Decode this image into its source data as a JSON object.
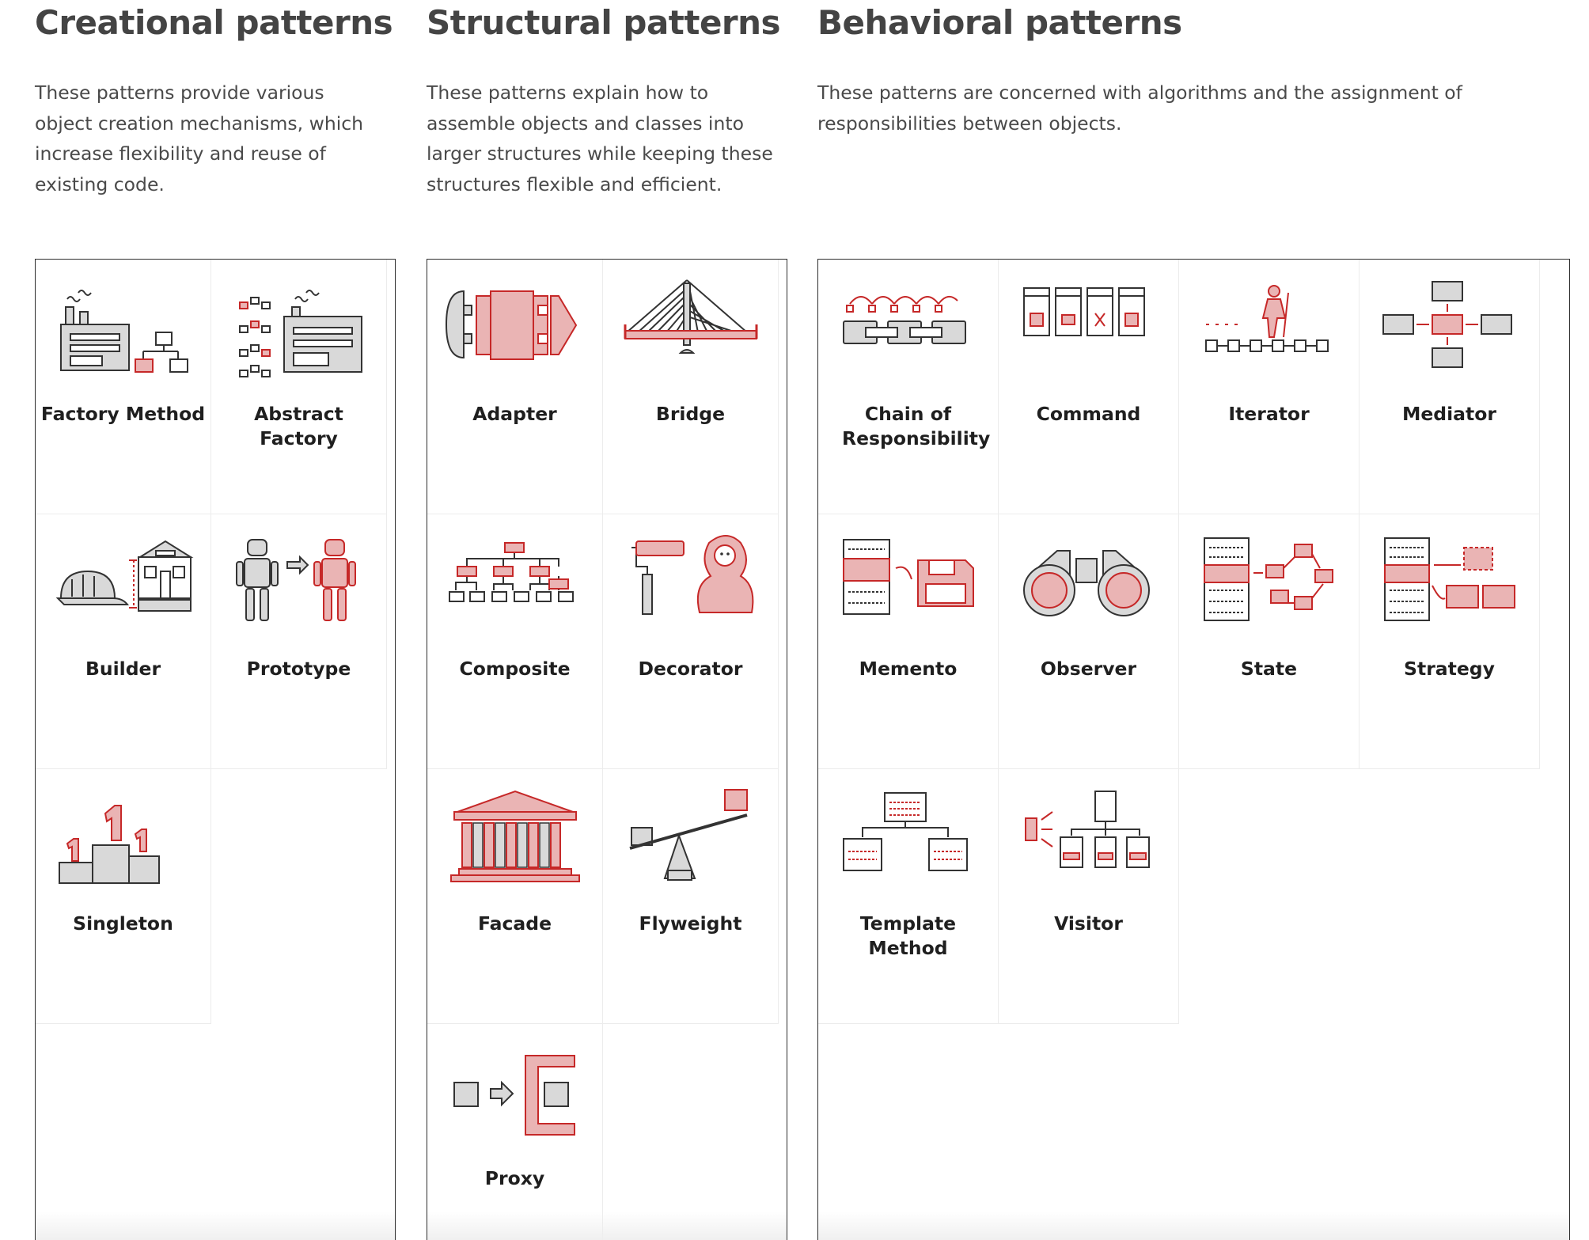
{
  "creational": {
    "title": "Creational patterns",
    "description": "These patterns provide various object creation mechanisms, which increase flexibility and reuse of existing code.",
    "patterns": [
      {
        "label": "Factory Method",
        "icon": "factory-method-icon"
      },
      {
        "label": "Abstract Factory",
        "icon": "abstract-factory-icon"
      },
      {
        "label": "Builder",
        "icon": "builder-icon"
      },
      {
        "label": "Prototype",
        "icon": "prototype-icon"
      },
      {
        "label": "Singleton",
        "icon": "singleton-icon"
      }
    ]
  },
  "structural": {
    "title": "Structural patterns",
    "description": "These patterns explain how to assemble objects and classes into larger structures while keeping these structures flexible and efficient.",
    "patterns": [
      {
        "label": "Adapter",
        "icon": "adapter-icon"
      },
      {
        "label": "Bridge",
        "icon": "bridge-icon"
      },
      {
        "label": "Composite",
        "icon": "composite-icon"
      },
      {
        "label": "Decorator",
        "icon": "decorator-icon"
      },
      {
        "label": "Facade",
        "icon": "facade-icon"
      },
      {
        "label": "Flyweight",
        "icon": "flyweight-icon"
      },
      {
        "label": "Proxy",
        "icon": "proxy-icon"
      }
    ]
  },
  "behavioral": {
    "title": "Behavioral patterns",
    "description": "These patterns are concerned with algorithms and the assignment of responsibilities between objects.",
    "patterns": [
      {
        "label": "Chain of Responsibility",
        "icon": "chain-of-responsibility-icon"
      },
      {
        "label": "Command",
        "icon": "command-icon"
      },
      {
        "label": "Iterator",
        "icon": "iterator-icon"
      },
      {
        "label": "Mediator",
        "icon": "mediator-icon"
      },
      {
        "label": "Memento",
        "icon": "memento-icon"
      },
      {
        "label": "Observer",
        "icon": "observer-icon"
      },
      {
        "label": "State",
        "icon": "state-icon"
      },
      {
        "label": "Strategy",
        "icon": "strategy-icon"
      },
      {
        "label": "Template Method",
        "icon": "template-method-icon"
      },
      {
        "label": "Visitor",
        "icon": "visitor-icon"
      }
    ]
  },
  "colors": {
    "accent": "#c62828",
    "accent_fill": "#eab4b4",
    "ink": "#333333",
    "gray_fill": "#d9d9d9"
  }
}
